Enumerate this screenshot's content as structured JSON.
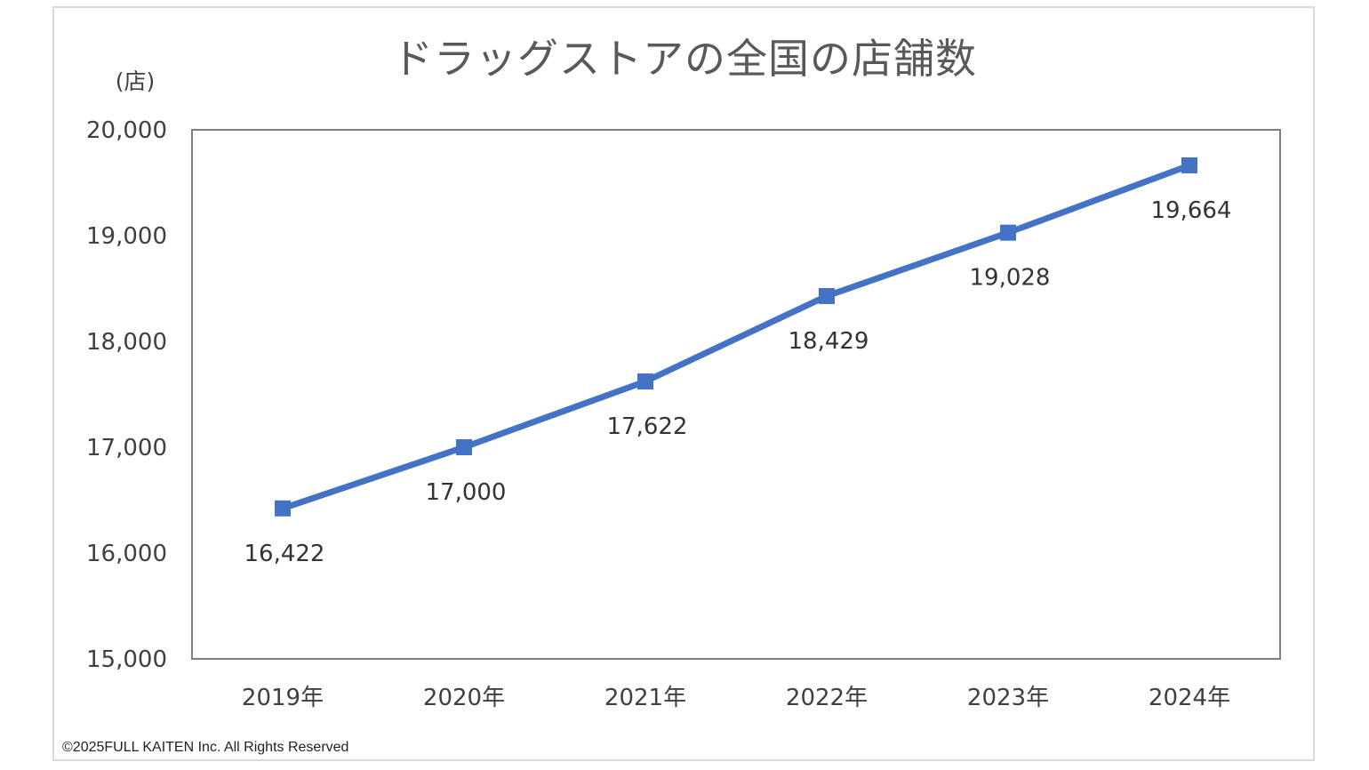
{
  "chart_data": {
    "type": "line",
    "title": "ドラッグストアの全国の店舗数",
    "unit_label": "(店)",
    "categories": [
      "2019年",
      "2020年",
      "2021年",
      "2022年",
      "2023年",
      "2024年"
    ],
    "series": [
      {
        "values": [
          16422,
          17000,
          17622,
          18429,
          19028,
          19664
        ],
        "labels": [
          "16,422",
          "17,000",
          "17,622",
          "18,429",
          "19,028",
          "19,664"
        ],
        "color": "#4472c4",
        "marker": "square"
      }
    ],
    "ylim": [
      15000,
      20000
    ],
    "yticks": [
      15000,
      16000,
      17000,
      18000,
      19000,
      20000
    ],
    "ytick_labels": [
      "15,000",
      "16,000",
      "17,000",
      "18,000",
      "19,000",
      "20,000"
    ],
    "grid": false,
    "legend": "none"
  },
  "footer": {
    "copyright": "©2025FULL KAITEN Inc. All Rights Reserved"
  }
}
